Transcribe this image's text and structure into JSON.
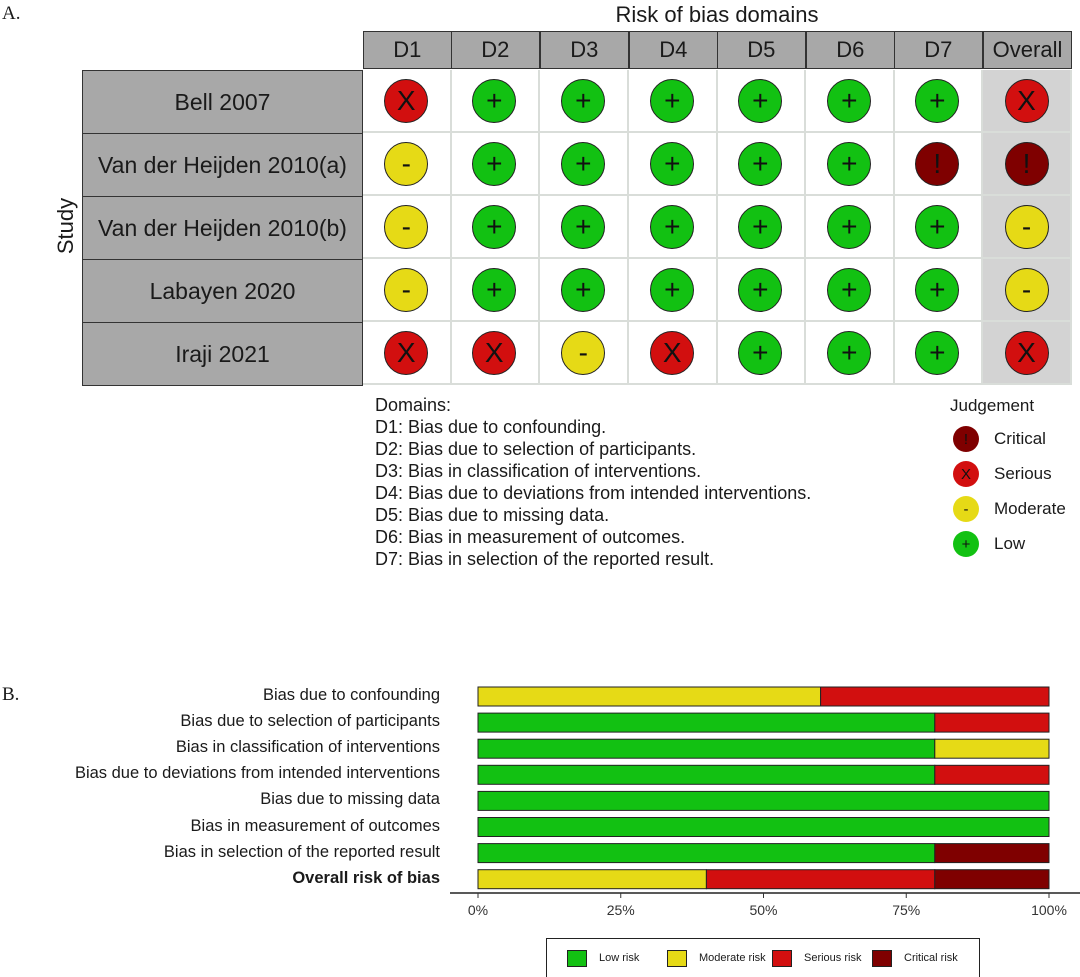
{
  "panel_a_label": "A.",
  "panel_b_label": "B.",
  "colors": {
    "critical": "#7f0000",
    "serious": "#d20f0f",
    "moderate": "#e6da16",
    "low": "#12c112"
  },
  "symbols": {
    "critical": "!",
    "serious": "X",
    "moderate": "-",
    "low": "+"
  },
  "chart_data": [
    {
      "type": "table",
      "title": "Risk of bias domains",
      "ylabel": "Study",
      "columns": [
        "D1",
        "D2",
        "D3",
        "D4",
        "D5",
        "D6",
        "D7",
        "Overall"
      ],
      "rows": [
        {
          "study": "Bell 2007",
          "judgements": [
            "serious",
            "low",
            "low",
            "low",
            "low",
            "low",
            "low",
            "serious"
          ]
        },
        {
          "study": "Van der Heijden 2010(a)",
          "judgements": [
            "moderate",
            "low",
            "low",
            "low",
            "low",
            "low",
            "critical",
            "critical"
          ]
        },
        {
          "study": "Van der Heijden 2010(b)",
          "judgements": [
            "moderate",
            "low",
            "low",
            "low",
            "low",
            "low",
            "low",
            "moderate"
          ]
        },
        {
          "study": "Labayen 2020",
          "judgements": [
            "moderate",
            "low",
            "low",
            "low",
            "low",
            "low",
            "low",
            "moderate"
          ]
        },
        {
          "study": "Iraji 2021",
          "judgements": [
            "serious",
            "serious",
            "moderate",
            "serious",
            "low",
            "low",
            "low",
            "serious"
          ]
        }
      ],
      "domains_title": "Domains:",
      "domains": [
        "D1: Bias due to confounding.",
        "D2: Bias due to selection of participants.",
        "D3: Bias in classification of interventions.",
        "D4: Bias due to deviations from intended interventions.",
        "D5: Bias due to missing data.",
        "D6: Bias in measurement of outcomes.",
        "D7: Bias in selection of the reported result."
      ],
      "judgement_title": "Judgement",
      "judgement_legend": [
        {
          "key": "critical",
          "label": "Critical"
        },
        {
          "key": "serious",
          "label": "Serious"
        },
        {
          "key": "moderate",
          "label": "Moderate"
        },
        {
          "key": "low",
          "label": "Low"
        }
      ]
    },
    {
      "type": "bar",
      "stacked": true,
      "orientation": "horizontal",
      "categories": [
        "Bias due to confounding",
        "Bias due to selection of participants",
        "Bias in classification of interventions",
        "Bias due to deviations from intended interventions",
        "Bias due to missing data",
        "Bias in measurement of outcomes",
        "Bias in selection of the reported result",
        "Overall risk of bias"
      ],
      "bold_category": "Overall risk of bias",
      "series": [
        {
          "name": "Low risk",
          "key": "low",
          "values": [
            0,
            80,
            80,
            80,
            100,
            100,
            80,
            0
          ]
        },
        {
          "name": "Moderate risk",
          "key": "moderate",
          "values": [
            60,
            0,
            20,
            0,
            0,
            0,
            0,
            40
          ]
        },
        {
          "name": "Serious risk",
          "key": "serious",
          "values": [
            40,
            20,
            0,
            20,
            0,
            0,
            0,
            40
          ]
        },
        {
          "name": "Critical risk",
          "key": "critical",
          "values": [
            0,
            0,
            0,
            0,
            0,
            0,
            20,
            20
          ]
        }
      ],
      "xlim": [
        0,
        100
      ],
      "xticks": [
        "0%",
        "25%",
        "50%",
        "75%",
        "100%"
      ],
      "legend_position": "bottom"
    }
  ]
}
